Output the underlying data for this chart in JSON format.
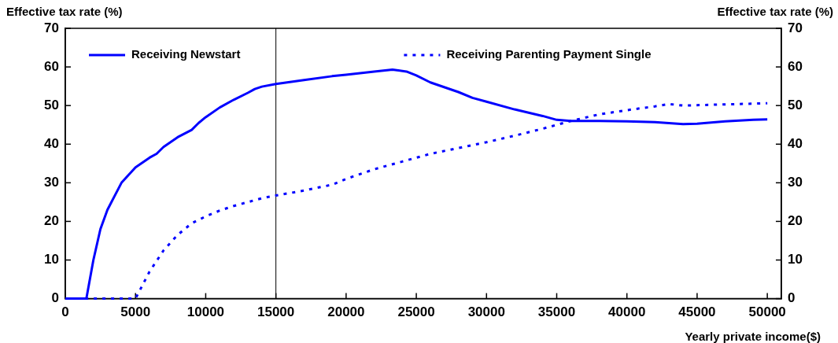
{
  "chart_data": {
    "type": "line",
    "ylabel": "Effective tax rate (%)",
    "y2label": "Effective tax rate (%)",
    "xlabel": "Yearly private income($)",
    "xlim": [
      0,
      51000
    ],
    "xticks": [
      0,
      5000,
      10000,
      15000,
      20000,
      25000,
      30000,
      35000,
      40000,
      45000,
      50000
    ],
    "ylim": [
      0,
      70
    ],
    "yticks": [
      0,
      10,
      20,
      30,
      40,
      50,
      60,
      70
    ],
    "y2lim": [
      0,
      70
    ],
    "y2ticks": [
      0,
      10,
      20,
      30,
      40,
      50,
      60,
      70
    ],
    "grid": false,
    "legend": "top",
    "marker": "none",
    "ref_lines": [
      {
        "axis": "x",
        "value": 15000,
        "color": "#000000",
        "line_style": "solid"
      }
    ],
    "series": [
      {
        "name": "Receiving Newstart",
        "color": "#0000ff",
        "line_style": "solid",
        "x": [
          0,
          1500,
          2000,
          2500,
          3000,
          4000,
          5000,
          6000,
          6500,
          7000,
          8000,
          9000,
          9500,
          10000,
          11000,
          12000,
          13000,
          13500,
          14000,
          15000,
          17000,
          19000,
          20000,
          21000,
          22000,
          23300,
          24300,
          25000,
          26000,
          28000,
          29000,
          30000,
          32000,
          34000,
          35000,
          36000,
          38000,
          40000,
          42000,
          44000,
          45000,
          47000,
          49000,
          50000
        ],
        "values": [
          0,
          0,
          10,
          18,
          23,
          30,
          34,
          36.5,
          37.5,
          39.3,
          41.8,
          43.7,
          45.5,
          47,
          49.5,
          51.5,
          53.3,
          54.3,
          54.9,
          55.6,
          56.6,
          57.6,
          58,
          58.4,
          58.8,
          59.3,
          58.8,
          57.8,
          56,
          53.5,
          52,
          51,
          49,
          47.3,
          46.3,
          46,
          46,
          45.9,
          45.7,
          45.2,
          45.3,
          45.9,
          46.3,
          46.4
        ]
      },
      {
        "name": "Receiving Parenting Payment Single",
        "color": "#0000ff",
        "line_style": "dotted",
        "x": [
          1500,
          5000,
          6000,
          7000,
          8000,
          9000,
          10000,
          11000,
          12000,
          13000,
          14000,
          15000,
          17000,
          19000,
          20000,
          22000,
          24000,
          26000,
          28000,
          30000,
          32000,
          34000,
          36000,
          38000,
          40000,
          42000,
          43000,
          44000,
          46000,
          48000,
          50000
        ],
        "values": [
          0,
          0,
          7,
          12.5,
          16.5,
          19.5,
          21.3,
          22.8,
          24,
          25,
          26,
          26.7,
          28,
          29.5,
          31,
          33.5,
          35.5,
          37.5,
          39,
          40.5,
          42.2,
          44,
          46,
          47.7,
          48.8,
          49.8,
          50.4,
          50,
          50.2,
          50.4,
          50.6
        ]
      }
    ]
  }
}
